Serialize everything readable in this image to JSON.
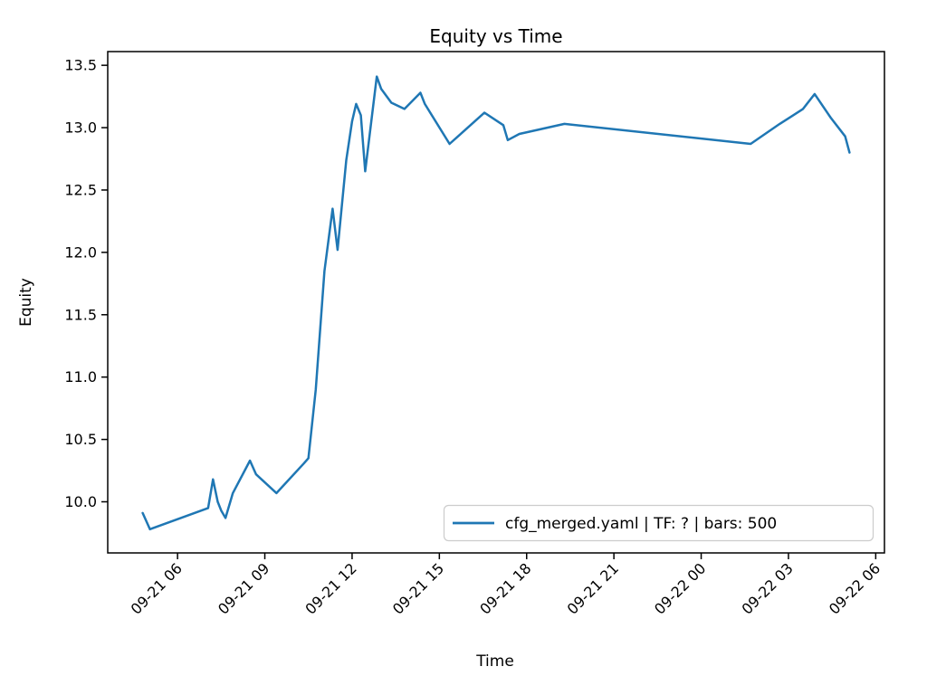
{
  "chart_data": {
    "type": "line",
    "title": "Equity vs Time",
    "xlabel": "Time",
    "ylabel": "Equity",
    "legend": [
      "cfg_merged.yaml | TF: ? | bars: 500"
    ],
    "legend_position": "lower right",
    "grid": false,
    "line_color": "#1f77b4",
    "frame_color": "#000000",
    "legend_border_color": "#cccccc",
    "x_axis_unit": "hours since 09-21 00:00",
    "xlim": [
      3.6,
      30.3
    ],
    "ylim": [
      9.59,
      13.61
    ],
    "x_ticks": [
      {
        "hour": 6,
        "label": "09-21 06"
      },
      {
        "hour": 9,
        "label": "09-21 09"
      },
      {
        "hour": 12,
        "label": "09-21 12"
      },
      {
        "hour": 15,
        "label": "09-21 15"
      },
      {
        "hour": 18,
        "label": "09-21 18"
      },
      {
        "hour": 21,
        "label": "09-21 21"
      },
      {
        "hour": 24,
        "label": "09-22 00"
      },
      {
        "hour": 27,
        "label": "09-22 03"
      },
      {
        "hour": 30,
        "label": "09-22 06"
      }
    ],
    "y_ticks": [
      10.0,
      10.5,
      11.0,
      11.5,
      12.0,
      12.5,
      13.0,
      13.5
    ],
    "series": [
      {
        "name": "cfg_merged.yaml | TF: ? | bars: 500",
        "color": "#1f77b4",
        "points": [
          [
            4.8,
            9.91
          ],
          [
            5.05,
            9.78
          ],
          [
            7.05,
            9.95
          ],
          [
            7.22,
            10.18
          ],
          [
            7.38,
            10.0
          ],
          [
            7.5,
            9.93
          ],
          [
            7.65,
            9.87
          ],
          [
            7.9,
            10.07
          ],
          [
            8.49,
            10.33
          ],
          [
            8.7,
            10.22
          ],
          [
            9.4,
            10.07
          ],
          [
            10.35,
            10.31
          ],
          [
            10.5,
            10.35
          ],
          [
            10.75,
            10.9
          ],
          [
            11.05,
            11.85
          ],
          [
            11.33,
            12.35
          ],
          [
            11.5,
            12.02
          ],
          [
            11.8,
            12.74
          ],
          [
            12.0,
            13.05
          ],
          [
            12.14,
            13.19
          ],
          [
            12.3,
            13.1
          ],
          [
            12.45,
            12.65
          ],
          [
            12.85,
            13.41
          ],
          [
            13.0,
            13.31
          ],
          [
            13.35,
            13.2
          ],
          [
            13.8,
            13.15
          ],
          [
            14.35,
            13.28
          ],
          [
            14.5,
            13.19
          ],
          [
            15.35,
            12.87
          ],
          [
            16.55,
            13.12
          ],
          [
            17.2,
            13.02
          ],
          [
            17.35,
            12.9
          ],
          [
            17.75,
            12.95
          ],
          [
            19.3,
            13.03
          ],
          [
            25.7,
            12.87
          ],
          [
            26.7,
            13.03
          ],
          [
            27.1,
            13.09
          ],
          [
            27.5,
            13.15
          ],
          [
            27.9,
            13.27
          ],
          [
            28.45,
            13.08
          ],
          [
            28.95,
            12.93
          ],
          [
            29.1,
            12.8
          ]
        ]
      }
    ]
  },
  "layout_hints": {
    "tick_label_rotation_deg": 45
  }
}
